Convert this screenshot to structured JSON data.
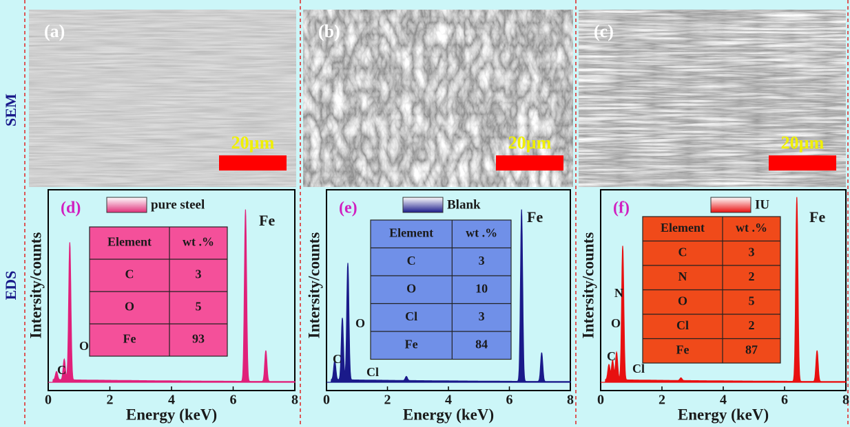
{
  "row_labels": [
    "SEM",
    "EDS"
  ],
  "sem_panels": [
    {
      "label": "(a)",
      "scale_bar": "20µm"
    },
    {
      "label": "(b)",
      "scale_bar": "20µm"
    },
    {
      "label": "(c)",
      "scale_bar": "20µm"
    }
  ],
  "eds_panels": [
    {
      "label": "(d)",
      "legend": "pure steel",
      "y_axis_label": "Intersity/counts",
      "x_axis_label": "Energy (keV)",
      "xlim": [
        0,
        8
      ],
      "xticks": [
        0,
        2,
        4,
        6,
        8
      ],
      "peak_labels": [
        "Fe",
        "O",
        "C"
      ],
      "table": {
        "header": [
          "Element",
          "wt .%"
        ],
        "rows": [
          [
            "C",
            3
          ],
          [
            "O",
            5
          ],
          [
            "Fe",
            93
          ]
        ]
      }
    },
    {
      "label": "(e)",
      "legend": "Blank",
      "y_axis_label": "Intersity/counts",
      "x_axis_label": "Energy (keV)",
      "xlim": [
        0,
        8
      ],
      "xticks": [
        0,
        2,
        4,
        6,
        8
      ],
      "peak_labels": [
        "Fe",
        "O",
        "C",
        "Cl"
      ],
      "table": {
        "header": [
          "Element",
          "wt .%"
        ],
        "rows": [
          [
            "C",
            3
          ],
          [
            "O",
            10
          ],
          [
            "Cl",
            3
          ],
          [
            "Fe",
            84
          ]
        ]
      }
    },
    {
      "label": "(f)",
      "legend": "IU",
      "y_axis_label": "Intersity/counts",
      "x_axis_label": "Energy (keV)",
      "xlim": [
        0,
        8
      ],
      "xticks": [
        0,
        2,
        4,
        6,
        8
      ],
      "peak_labels": [
        "Fe",
        "N",
        "O",
        "C",
        "Cl"
      ],
      "table": {
        "header": [
          "Element",
          "wt .%"
        ],
        "rows": [
          [
            "C",
            3
          ],
          [
            "N",
            2
          ],
          [
            "O",
            5
          ],
          [
            "Cl",
            2
          ],
          [
            "Fe",
            87
          ]
        ]
      }
    }
  ]
}
